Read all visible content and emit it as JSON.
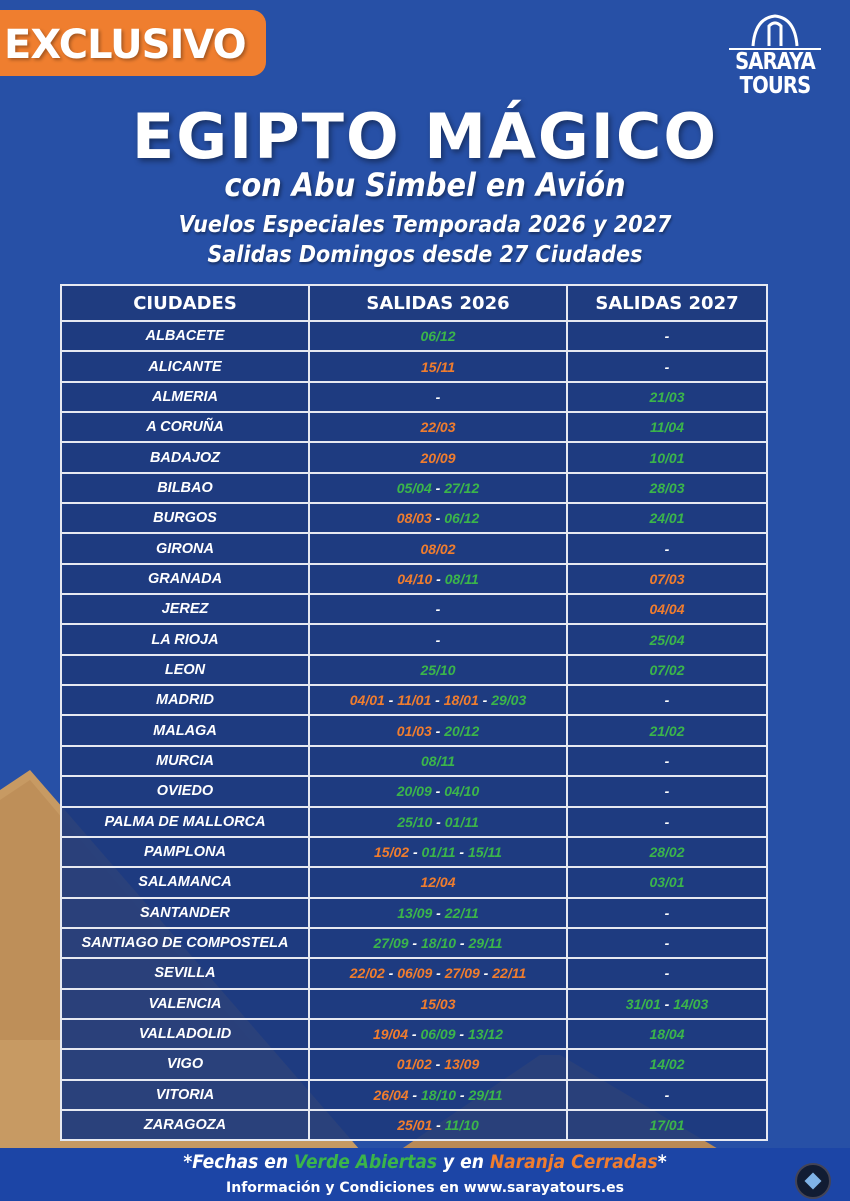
{
  "badge": "EXCLUSIVO",
  "logo": {
    "line1": "SARAYA",
    "line2": "TOURS"
  },
  "title": "EGIPTO MÁGICO",
  "subtitle": "con Abu Simbel en Avión",
  "line1": "Vuelos Especiales Temporada 2026 y 2027",
  "line2": "Salidas Domingos desde 27 Ciudades",
  "colors": {
    "open": "#3bb54a",
    "closed": "#f07d2e",
    "background": "#2750a6"
  },
  "table": {
    "headers": [
      "CIUDADES",
      "SALIDAS 2026",
      "SALIDAS 2027"
    ],
    "rows": [
      {
        "city": "ALBACETE",
        "s2026": [
          [
            "06/12",
            "open"
          ]
        ],
        "s2027": []
      },
      {
        "city": "ALICANTE",
        "s2026": [
          [
            "15/11",
            "closed"
          ]
        ],
        "s2027": []
      },
      {
        "city": "ALMERIA",
        "s2026": [],
        "s2027": [
          [
            "21/03",
            "open"
          ]
        ]
      },
      {
        "city": "A CORUÑA",
        "s2026": [
          [
            "22/03",
            "closed"
          ]
        ],
        "s2027": [
          [
            "11/04",
            "open"
          ]
        ]
      },
      {
        "city": "BADAJOZ",
        "s2026": [
          [
            "20/09",
            "closed"
          ]
        ],
        "s2027": [
          [
            "10/01",
            "open"
          ]
        ]
      },
      {
        "city": "BILBAO",
        "s2026": [
          [
            "05/04",
            "open"
          ],
          [
            "27/12",
            "open"
          ]
        ],
        "s2027": [
          [
            "28/03",
            "open"
          ]
        ]
      },
      {
        "city": "BURGOS",
        "s2026": [
          [
            "08/03",
            "closed"
          ],
          [
            "06/12",
            "open"
          ]
        ],
        "s2027": [
          [
            "24/01",
            "open"
          ]
        ]
      },
      {
        "city": "GIRONA",
        "s2026": [
          [
            "08/02",
            "closed"
          ]
        ],
        "s2027": []
      },
      {
        "city": "GRANADA",
        "s2026": [
          [
            "04/10",
            "closed"
          ],
          [
            "08/11",
            "open"
          ]
        ],
        "s2027": [
          [
            "07/03",
            "closed"
          ]
        ]
      },
      {
        "city": "JEREZ",
        "s2026": [],
        "s2027": [
          [
            "04/04",
            "closed"
          ]
        ]
      },
      {
        "city": "LA RIOJA",
        "s2026": [],
        "s2027": [
          [
            "25/04",
            "open"
          ]
        ]
      },
      {
        "city": "LEON",
        "s2026": [
          [
            "25/10",
            "open"
          ]
        ],
        "s2027": [
          [
            "07/02",
            "open"
          ]
        ]
      },
      {
        "city": "MADRID",
        "s2026": [
          [
            "04/01",
            "closed"
          ],
          [
            "11/01",
            "closed"
          ],
          [
            "18/01",
            "closed"
          ],
          [
            "29/03",
            "open"
          ]
        ],
        "s2027": []
      },
      {
        "city": "MALAGA",
        "s2026": [
          [
            "01/03",
            "closed"
          ],
          [
            "20/12",
            "open"
          ]
        ],
        "s2027": [
          [
            "21/02",
            "open"
          ]
        ]
      },
      {
        "city": "MURCIA",
        "s2026": [
          [
            "08/11",
            "open"
          ]
        ],
        "s2027": []
      },
      {
        "city": "OVIEDO",
        "s2026": [
          [
            "20/09",
            "open"
          ],
          [
            "04/10",
            "open"
          ]
        ],
        "s2027": []
      },
      {
        "city": "PALMA DE  MALLORCA",
        "s2026": [
          [
            "25/10",
            "open"
          ],
          [
            "01/11",
            "open"
          ]
        ],
        "s2027": []
      },
      {
        "city": "PAMPLONA",
        "s2026": [
          [
            "15/02",
            "closed"
          ],
          [
            "01/11",
            "open"
          ],
          [
            "15/11",
            "open"
          ]
        ],
        "s2027": [
          [
            "28/02",
            "open"
          ]
        ]
      },
      {
        "city": "SALAMANCA",
        "s2026": [
          [
            "12/04",
            "closed"
          ]
        ],
        "s2027": [
          [
            "03/01",
            "open"
          ]
        ]
      },
      {
        "city": "SANTANDER",
        "s2026": [
          [
            "13/09",
            "open"
          ],
          [
            "22/11",
            "open"
          ]
        ],
        "s2027": []
      },
      {
        "city": "SANTIAGO DE COMPOSTELA",
        "s2026": [
          [
            "27/09",
            "open"
          ],
          [
            "18/10",
            "open"
          ],
          [
            "29/11",
            "open"
          ]
        ],
        "s2027": []
      },
      {
        "city": "SEVILLA",
        "s2026": [
          [
            "22/02",
            "closed"
          ],
          [
            "06/09",
            "closed"
          ],
          [
            "27/09",
            "closed"
          ],
          [
            "22/11",
            "closed"
          ]
        ],
        "s2027": []
      },
      {
        "city": "VALENCIA",
        "s2026": [
          [
            "15/03",
            "closed"
          ]
        ],
        "s2027": [
          [
            "31/01",
            "open"
          ],
          [
            "14/03",
            "open"
          ]
        ]
      },
      {
        "city": "VALLADOLID",
        "s2026": [
          [
            "19/04",
            "closed"
          ],
          [
            "06/09",
            "open"
          ],
          [
            "13/12",
            "open"
          ]
        ],
        "s2027": [
          [
            "18/04",
            "open"
          ]
        ]
      },
      {
        "city": "VIGO",
        "s2026": [
          [
            "01/02",
            "closed"
          ],
          [
            "13/09",
            "closed"
          ]
        ],
        "s2027": [
          [
            "14/02",
            "open"
          ]
        ]
      },
      {
        "city": "VITORIA",
        "s2026": [
          [
            "26/04",
            "closed"
          ],
          [
            "18/10",
            "open"
          ],
          [
            "29/11",
            "open"
          ]
        ],
        "s2027": []
      },
      {
        "city": "ZARAGOZA",
        "s2026": [
          [
            "25/01",
            "closed"
          ],
          [
            "11/10",
            "open"
          ]
        ],
        "s2027": [
          [
            "17/01",
            "open"
          ]
        ]
      }
    ],
    "empty": "-",
    "separator": " - "
  },
  "footer": {
    "note_a": "*Fechas en ",
    "note_green": "Verde Abiertas",
    "note_b": " y en ",
    "note_orange": "Naranja Cerradas",
    "note_c": "*",
    "info": "Información y Condiciones en www.sarayatours.es"
  }
}
